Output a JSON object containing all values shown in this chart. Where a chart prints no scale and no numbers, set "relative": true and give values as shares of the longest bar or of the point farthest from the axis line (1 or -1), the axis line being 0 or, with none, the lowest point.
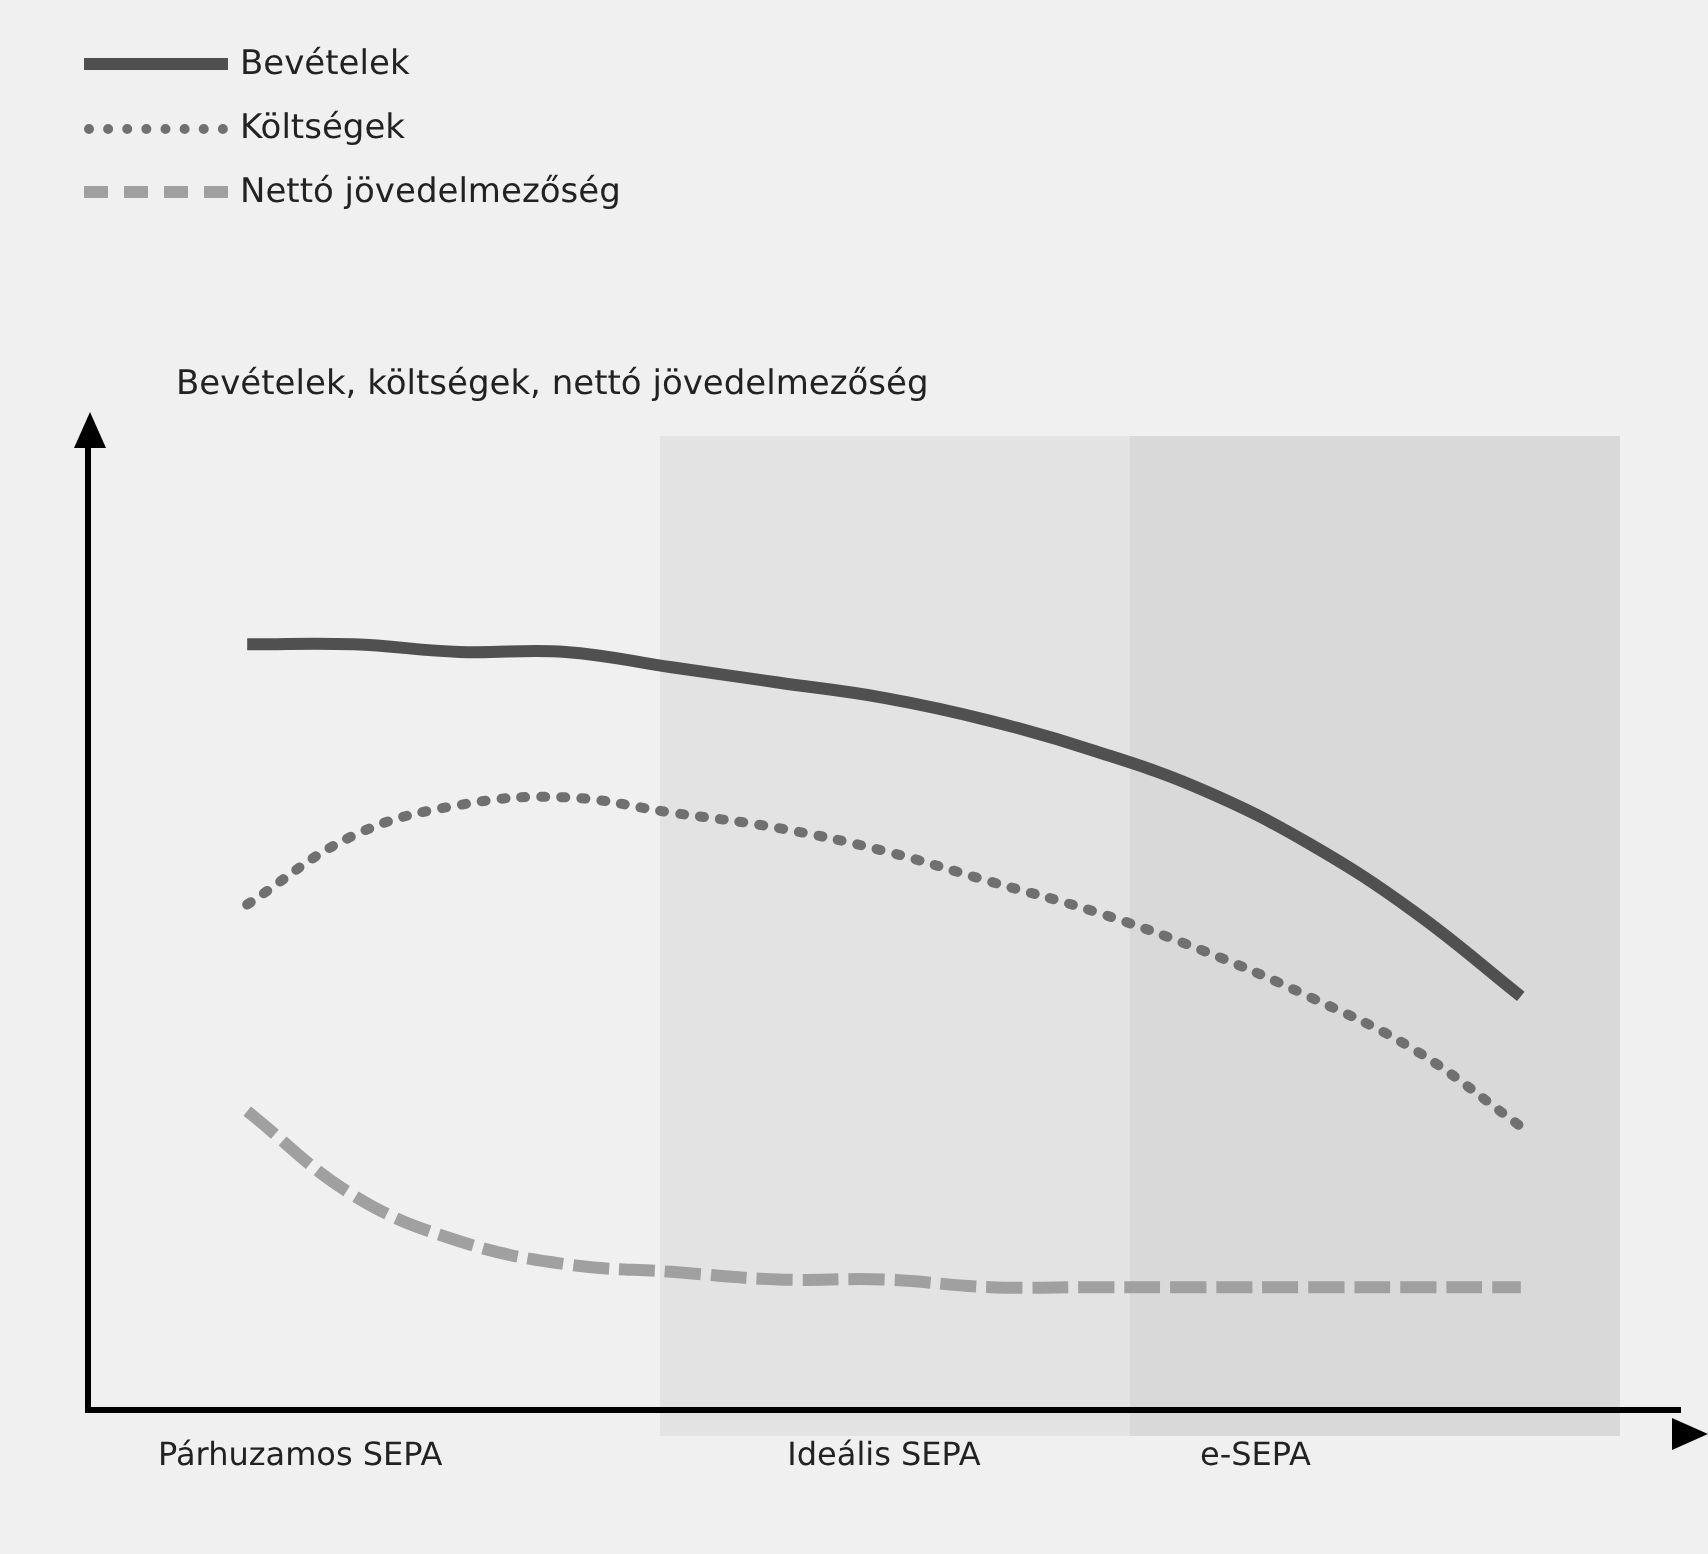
{
  "chart_data": {
    "type": "line",
    "relative": true,
    "annotations": [
      "Bevételek, költségek, nettó jövedelmezőség"
    ],
    "legend": "top left",
    "tick_labels": "x",
    "categories": [
      null,
      null,
      null,
      null,
      "Párhuzamos SEPA",
      null,
      null,
      null,
      null,
      null,
      null,
      null,
      null,
      null,
      null,
      "Ideális SEPA",
      null,
      null,
      null,
      null,
      null,
      null,
      "e-SEPA",
      null,
      null,
      null,
      null,
      null,
      null,
      null,
      null
    ],
    "series": [
      {
        "name": "Bevételek",
        "color": "#505050",
        "line_style": "solid",
        "values": [
          null,
          null,
          null,
          1.0,
          null,
          1.0,
          null,
          0.99,
          null,
          0.99,
          null,
          0.97,
          null,
          0.95,
          null,
          0.93,
          null,
          0.9,
          null,
          0.86,
          null,
          0.81,
          null,
          0.74,
          null,
          0.65,
          null,
          0.54,
          null,
          null,
          null
        ]
      },
      {
        "name": "Költségek",
        "color": "#707070",
        "line_style": "dotted",
        "values": [
          null,
          null,
          null,
          0.66,
          null,
          0.75,
          null,
          0.79,
          null,
          0.8,
          null,
          0.78,
          null,
          0.76,
          null,
          0.73,
          null,
          0.69,
          null,
          0.65,
          null,
          0.6,
          null,
          0.54,
          null,
          0.47,
          null,
          0.37,
          null,
          null,
          null
        ]
      },
      {
        "name": "Nettó jövedelmezőség",
        "color": "#a0a0a0",
        "line_style": "dashed",
        "values": [
          null,
          null,
          null,
          0.39,
          null,
          0.28,
          null,
          0.22,
          null,
          0.19,
          null,
          0.18,
          null,
          0.17,
          null,
          0.17,
          null,
          0.16,
          null,
          0.16,
          null,
          0.16,
          null,
          0.16,
          null,
          0.16,
          null,
          0.16,
          null,
          null,
          null
        ]
      }
    ]
  }
}
